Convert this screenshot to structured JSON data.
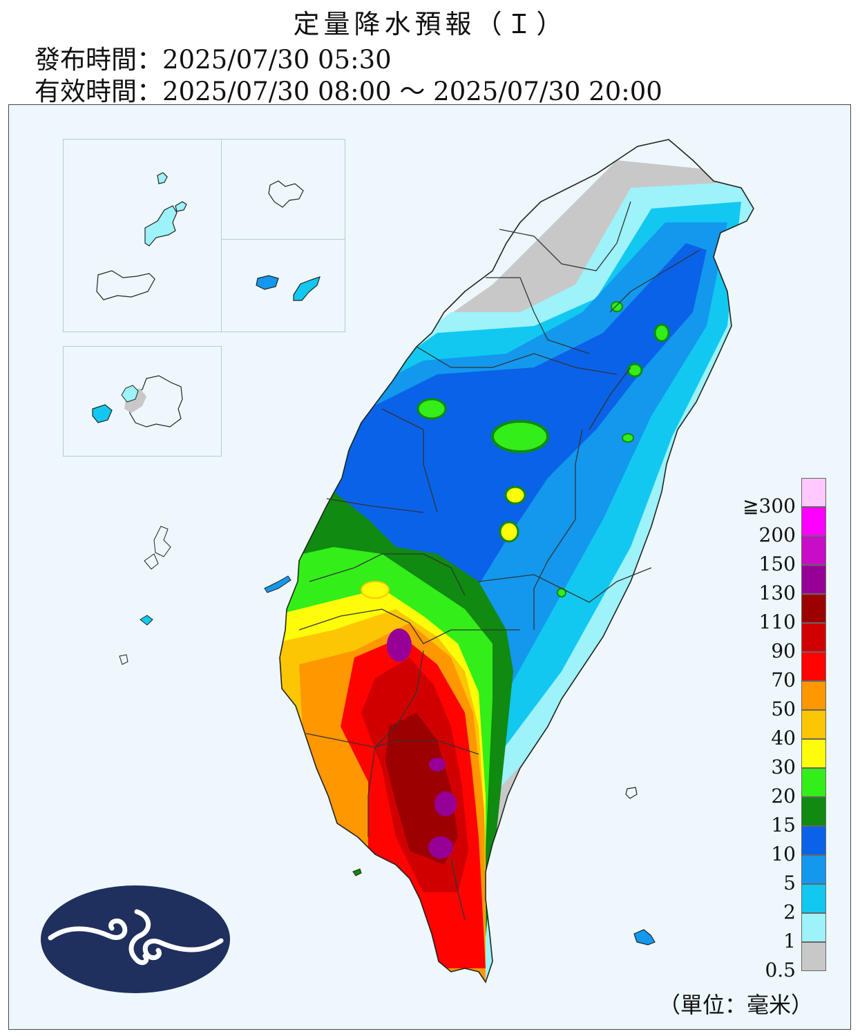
{
  "header": {
    "title": "定量降水預報（Ｉ）",
    "issue_label": "發布時間：",
    "issue_time": "2025/07/30 05:30",
    "valid_label": "有效時間：",
    "valid_time": "2025/07/30 08:00 ～ 2025/07/30 20:00"
  },
  "legend": {
    "unit": "（單位：毫米）",
    "levels": [
      {
        "label": "0.5",
        "color": "#c8c8c8"
      },
      {
        "label": "1",
        "color": "#9ef2fa"
      },
      {
        "label": "2",
        "color": "#12c8f0"
      },
      {
        "label": "5",
        "color": "#1398ee"
      },
      {
        "label": "10",
        "color": "#0a62e8"
      },
      {
        "label": "15",
        "color": "#108a10"
      },
      {
        "label": "20",
        "color": "#33ee19"
      },
      {
        "label": "30",
        "color": "#fffc0a"
      },
      {
        "label": "40",
        "color": "#fcc605"
      },
      {
        "label": "50",
        "color": "#ff9700"
      },
      {
        "label": "70",
        "color": "#ff0300"
      },
      {
        "label": "90",
        "color": "#d00000"
      },
      {
        "label": "110",
        "color": "#9c0000"
      },
      {
        "label": "130",
        "color": "#960096"
      },
      {
        "label": "150",
        "color": "#c80cc8"
      },
      {
        "label": "200",
        "color": "#fe00fe"
      },
      {
        "label": "≧300",
        "color": "#ffc8ff"
      }
    ]
  },
  "map": {
    "background": "#eef7fc",
    "coastline": "#222222",
    "boundaries": "#333333",
    "logo_color": "#1f2f5e"
  }
}
